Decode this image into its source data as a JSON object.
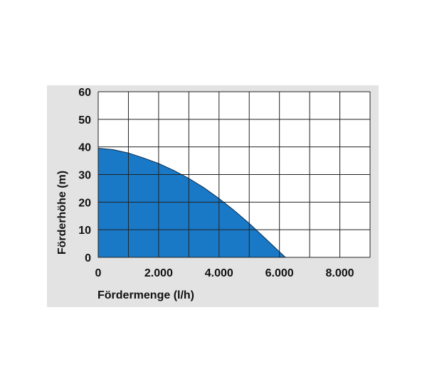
{
  "chart_data": {
    "type": "area",
    "title": "",
    "xlabel": "Fördermenge (l/h)",
    "ylabel": "Förderhöhe (m)",
    "xlim": [
      0,
      9000
    ],
    "ylim": [
      0,
      60
    ],
    "x_ticks": [
      0,
      2000,
      4000,
      6000,
      8000
    ],
    "x_tick_labels": [
      "0",
      "2.000",
      "4.000",
      "6.000",
      "8.000"
    ],
    "y_ticks": [
      0,
      10,
      20,
      30,
      40,
      50,
      60
    ],
    "y_tick_labels": [
      "0",
      "10",
      "20",
      "30",
      "40",
      "50",
      "60"
    ],
    "grid": true,
    "fill_color": "#1a79c6",
    "background_color": "#e3e3e3",
    "series": [
      {
        "x": [
          0,
          500,
          1000,
          1500,
          2000,
          2500,
          3000,
          3500,
          4000,
          4500,
          5000,
          5500,
          6000,
          6200
        ],
        "y": [
          39.5,
          39.0,
          37.8,
          36.0,
          34.0,
          31.5,
          28.6,
          25.2,
          21.3,
          17.0,
          12.3,
          7.2,
          2.0,
          0
        ]
      }
    ]
  }
}
